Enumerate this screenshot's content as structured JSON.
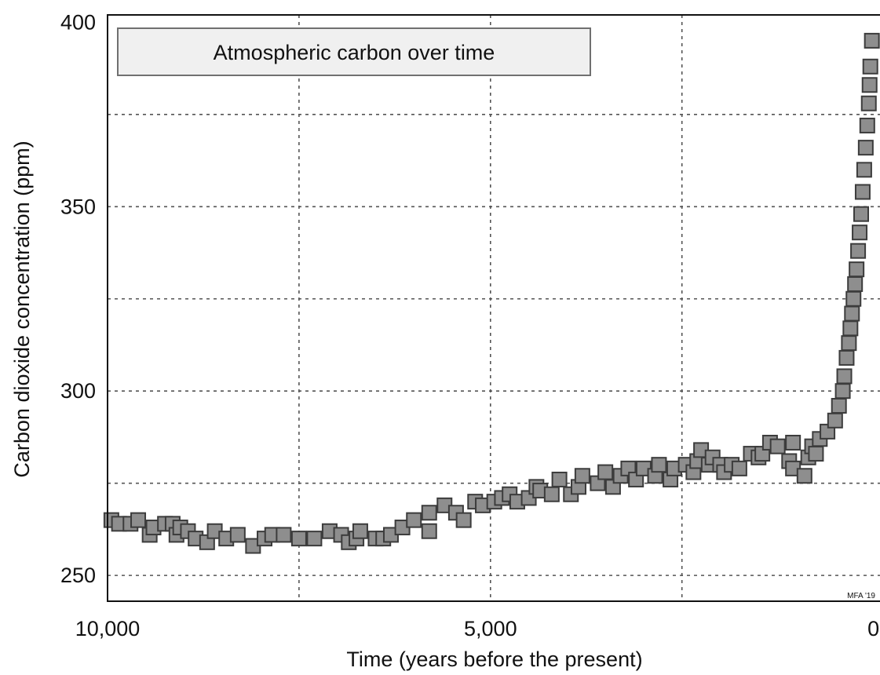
{
  "chart_data": {
    "type": "scatter",
    "title": "Atmospheric carbon over time",
    "xlabel": "Time (years before the present)",
    "ylabel": "Carbon dioxide concentration (ppm)",
    "credit": "MFA '19",
    "x_reversed": true,
    "xlim": [
      10000,
      -250
    ],
    "ylim": [
      243,
      402
    ],
    "x_ticks": [
      10000,
      5000,
      0
    ],
    "x_tick_labels": [
      "10,000",
      "5,000",
      "0"
    ],
    "y_ticks": [
      250,
      300,
      350,
      400
    ],
    "y_tick_labels": [
      "250",
      "300",
      "350",
      "400"
    ],
    "x_grid": [
      7500,
      5000,
      2500
    ],
    "y_grid": [
      250,
      275,
      300,
      325,
      350,
      375
    ],
    "grid": true,
    "marker": "square",
    "colors": {
      "fill": "#8e8e8e",
      "edge": "#3c3c3c",
      "grid": "#555555",
      "frame": "#111111",
      "title_box": "#f0f0f0"
    },
    "points": [
      [
        9950,
        265
      ],
      [
        9850,
        264
      ],
      [
        9700,
        264
      ],
      [
        9600,
        265
      ],
      [
        9450,
        261
      ],
      [
        9400,
        263
      ],
      [
        9250,
        264
      ],
      [
        9150,
        264
      ],
      [
        9100,
        261
      ],
      [
        9050,
        263
      ],
      [
        8950,
        262
      ],
      [
        8850,
        260
      ],
      [
        8700,
        259
      ],
      [
        8600,
        262
      ],
      [
        8450,
        260
      ],
      [
        8300,
        261
      ],
      [
        8100,
        258
      ],
      [
        7950,
        260
      ],
      [
        7850,
        261
      ],
      [
        7700,
        261
      ],
      [
        7500,
        260
      ],
      [
        7300,
        260
      ],
      [
        7100,
        262
      ],
      [
        6950,
        261
      ],
      [
        6850,
        259
      ],
      [
        6750,
        260
      ],
      [
        6700,
        262
      ],
      [
        6500,
        260
      ],
      [
        6400,
        260
      ],
      [
        6300,
        261
      ],
      [
        6150,
        263
      ],
      [
        6000,
        265
      ],
      [
        5800,
        267
      ],
      [
        5800,
        262
      ],
      [
        5600,
        269
      ],
      [
        5450,
        267
      ],
      [
        5350,
        265
      ],
      [
        5200,
        270
      ],
      [
        5100,
        269
      ],
      [
        4950,
        270
      ],
      [
        4850,
        271
      ],
      [
        4750,
        272
      ],
      [
        4650,
        270
      ],
      [
        4500,
        271
      ],
      [
        4400,
        274
      ],
      [
        4350,
        273
      ],
      [
        4200,
        272
      ],
      [
        4100,
        276
      ],
      [
        3950,
        272
      ],
      [
        3850,
        274
      ],
      [
        3800,
        277
      ],
      [
        3600,
        275
      ],
      [
        3500,
        278
      ],
      [
        3400,
        274
      ],
      [
        3300,
        277
      ],
      [
        3200,
        279
      ],
      [
        3100,
        276
      ],
      [
        3000,
        279
      ],
      [
        2850,
        277
      ],
      [
        2800,
        280
      ],
      [
        2650,
        276
      ],
      [
        2600,
        279
      ],
      [
        2450,
        280
      ],
      [
        2350,
        278
      ],
      [
        2300,
        281
      ],
      [
        2250,
        284
      ],
      [
        2150,
        280
      ],
      [
        2100,
        282
      ],
      [
        2000,
        280
      ],
      [
        1950,
        278
      ],
      [
        1850,
        280
      ],
      [
        1750,
        279
      ],
      [
        1600,
        283
      ],
      [
        1500,
        282
      ],
      [
        1450,
        283
      ],
      [
        1350,
        286
      ],
      [
        1250,
        285
      ],
      [
        1100,
        281
      ],
      [
        1050,
        279
      ],
      [
        1050,
        286
      ],
      [
        900,
        277
      ],
      [
        850,
        282
      ],
      [
        800,
        285
      ],
      [
        750,
        283
      ],
      [
        700,
        287
      ],
      [
        600,
        289
      ],
      [
        500,
        292
      ],
      [
        450,
        296
      ],
      [
        400,
        300
      ],
      [
        380,
        304
      ],
      [
        350,
        309
      ],
      [
        320,
        313
      ],
      [
        300,
        317
      ],
      [
        280,
        321
      ],
      [
        260,
        325
      ],
      [
        240,
        329
      ],
      [
        220,
        333
      ],
      [
        200,
        338
      ],
      [
        180,
        343
      ],
      [
        160,
        348
      ],
      [
        140,
        354
      ],
      [
        120,
        360
      ],
      [
        100,
        366
      ],
      [
        80,
        372
      ],
      [
        60,
        378
      ],
      [
        50,
        383
      ],
      [
        40,
        388
      ],
      [
        20,
        395
      ]
    ]
  }
}
